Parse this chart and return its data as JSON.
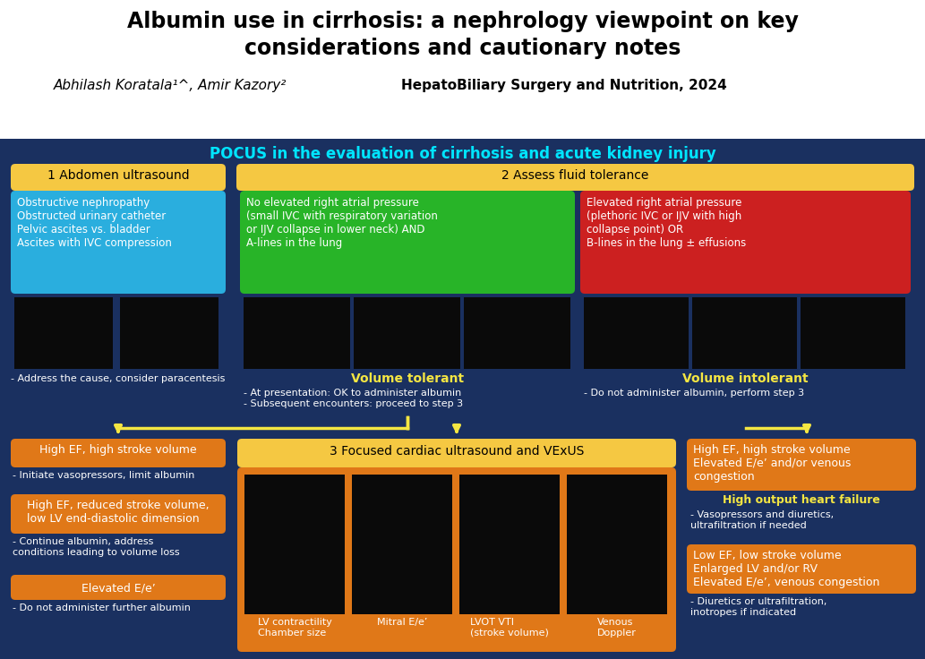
{
  "title_line1": "Albumin use in cirrhosis: a nephrology viewpoint on key",
  "title_line2": "considerations and cautionary notes",
  "authors": "Abhilash Koratala¹^, Amir Kazory²",
  "journal": "HepatoBiliary Surgery and Nutrition, 2024",
  "pocus_header": "POCUS in the evaluation of cirrhosis and acute kidney injury",
  "bg_color": "#1a3060",
  "header_bg": "#ffffff",
  "pocus_header_color": "#00e5ff",
  "yellow_header": "#f5c842",
  "blue_box": "#2aaede",
  "green_box": "#28b428",
  "red_box": "#cc2020",
  "orange_box": "#e07818",
  "white": "#ffffff",
  "yellow_text": "#f5e642",
  "box1_title": "1 Abdomen ultrasound",
  "box1_items": "Obstructive nephropathy\nObstructed urinary catheter\nPelvic ascites vs. bladder\nAscites with IVC compression",
  "box1_note": "- Address the cause, consider paracentesis",
  "box2_title": "2 Assess fluid tolerance",
  "box2a_text": "No elevated right atrial pressure\n(small IVC with respiratory variation\nor IJV collapse in lower neck) AND\nA-lines in the lung",
  "box2b_text": "Elevated right atrial pressure\n(plethoric IVC or IJV with high\ncollapse point) OR\nB-lines in the lung ± effusions",
  "vol_tolerant": "Volume tolerant",
  "vol_tolerant_notes": "- At presentation: OK to administer albumin\n- Subsequent encounters: proceed to step 3",
  "vol_intolerant": "Volume intolerant",
  "vol_intolerant_note": "- Do not administer albumin, perform step 3",
  "box3_title": "3 Focused cardiac ultrasound and VExUS",
  "box3_labels": [
    "LV contractility\nChamber size",
    "Mitral E/e’",
    "LVOT VTI\n(stroke volume)",
    "Venous\nDoppler"
  ],
  "left_box1_title": "High EF, high stroke volume",
  "left_box1_note": "- Initiate vasopressors, limit albumin",
  "left_box2_title": "High EF, reduced stroke volume,\nlow LV end-diastolic dimension",
  "left_box2_note": "- Continue albumin, address\nconditions leading to volume loss",
  "left_box3_title": "Elevated E/e’",
  "left_box3_note": "- Do not administer further albumin",
  "right_box1_text": "High EF, high stroke volume\nElevated E/e’ and/or venous\ncongestion",
  "right_box1_title": "High output heart failure",
  "right_box1_note": "- Vasopressors and diuretics,\nultrafiltration if needed",
  "right_box2_text": "Low EF, low stroke volume\nEnlarged LV and/or RV\nElevated E/e’, venous congestion",
  "right_box2_note": "- Diuretics or ultrafiltration,\ninotropes if indicated"
}
